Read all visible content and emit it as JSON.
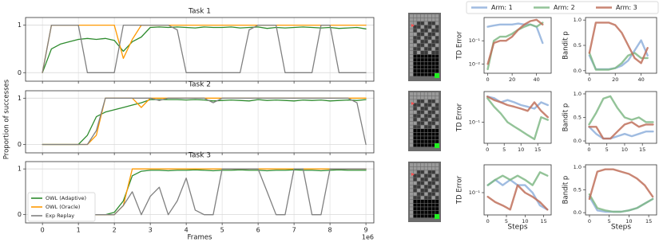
{
  "chart_data": [
    {
      "type": "line",
      "title": "Task 1",
      "grid": true,
      "xticklabels": false,
      "x": [
        0,
        0.25,
        0.5,
        0.75,
        1,
        1.25,
        1.5,
        1.75,
        2,
        2.25,
        2.5,
        2.75,
        3,
        3.25,
        3.5,
        3.75,
        4,
        4.25,
        4.5,
        4.75,
        5,
        5.25,
        5.5,
        5.75,
        6,
        6.25,
        6.5,
        6.75,
        7,
        7.25,
        7.5,
        7.75,
        8,
        8.25,
        8.5,
        8.75,
        9
      ],
      "xlim": [
        -0.47,
        9.22
      ],
      "ylim": [
        -0.18,
        1.16
      ],
      "xticks": [
        0,
        1,
        2,
        3,
        4,
        5,
        6,
        7,
        8,
        9
      ],
      "yticks": [
        0,
        1
      ],
      "series": [
        {
          "color": "#2e8b2e",
          "values": [
            0,
            0.5,
            0.6,
            0.65,
            0.7,
            0.72,
            0.7,
            0.72,
            0.68,
            0.45,
            0.65,
            0.75,
            0.95,
            0.96,
            0.95,
            0.96,
            0.95,
            0.94,
            0.96,
            0.95,
            0.95,
            0.96,
            0.94,
            0.95,
            0.96,
            0.93,
            0.95,
            0.94,
            0.95,
            0.96,
            0.95,
            0.94,
            0.95,
            0.93,
            0.94,
            0.95,
            0.92
          ]
        },
        {
          "color": "#ff9900",
          "values": [
            0,
            1,
            1,
            1,
            1,
            1,
            1,
            1,
            1,
            0.3,
            0.7,
            1,
            1,
            1,
            1,
            1,
            1,
            1,
            1,
            1,
            1,
            1,
            1,
            1,
            1,
            1,
            1,
            1,
            1,
            1,
            1,
            1,
            1,
            1,
            1,
            1,
            1
          ]
        },
        {
          "color": "#808080",
          "values": [
            0,
            1,
            1,
            1,
            1,
            0,
            0,
            0,
            0,
            1,
            1,
            1,
            1,
            1,
            1,
            0.9,
            0,
            0,
            0,
            0,
            0,
            0,
            0,
            0.9,
            1,
            1,
            1,
            0,
            0,
            0,
            0,
            1,
            1,
            0,
            0,
            0,
            0
          ]
        }
      ]
    },
    {
      "type": "line",
      "title": "Task 2",
      "ylabel": "Proportion of successes",
      "grid": true,
      "xticklabels": false,
      "x": [
        0,
        0.25,
        0.5,
        0.75,
        1,
        1.25,
        1.5,
        1.75,
        2,
        2.25,
        2.5,
        2.75,
        3,
        3.25,
        3.5,
        3.75,
        4,
        4.25,
        4.5,
        4.75,
        5,
        5.25,
        5.5,
        5.75,
        6,
        6.25,
        6.5,
        6.75,
        7,
        7.25,
        7.5,
        7.75,
        8,
        8.25,
        8.5,
        8.75,
        9
      ],
      "xlim": [
        -0.47,
        9.22
      ],
      "ylim": [
        -0.18,
        1.16
      ],
      "xticks": [
        0,
        1,
        2,
        3,
        4,
        5,
        6,
        7,
        8,
        9
      ],
      "yticks": [
        0,
        1
      ],
      "series": [
        {
          "color": "#2e8b2e",
          "values": [
            0,
            0,
            0,
            0,
            0,
            0.2,
            0.6,
            0.7,
            0.75,
            0.8,
            0.85,
            0.9,
            0.97,
            0.97,
            0.97,
            0.97,
            0.96,
            0.97,
            0.96,
            0.94,
            0.95,
            0.96,
            0.95,
            0.94,
            0.97,
            0.95,
            0.96,
            0.95,
            0.94,
            0.96,
            0.95,
            0.96,
            0.94,
            0.95,
            0.96,
            0.95,
            0.97
          ]
        },
        {
          "color": "#ff9900",
          "values": [
            0,
            0,
            0,
            0,
            0,
            0,
            0.2,
            1,
            1,
            1,
            1,
            0.8,
            1,
            1,
            1,
            1,
            1,
            1,
            1,
            1,
            1,
            1,
            1,
            1,
            1,
            1,
            1,
            1,
            1,
            1,
            1,
            1,
            1,
            1,
            1,
            1,
            1
          ]
        },
        {
          "color": "#808080",
          "values": [
            0,
            0,
            0,
            0,
            0,
            0,
            0.3,
            1,
            1,
            1,
            1,
            1,
            1,
            0.95,
            1,
            1,
            1,
            1,
            1,
            0.9,
            1,
            1,
            1,
            1,
            1,
            1,
            1,
            1,
            1,
            1,
            1,
            1,
            1,
            1,
            1,
            0.9,
            0
          ]
        }
      ]
    },
    {
      "type": "line",
      "title": "Task 3",
      "xlabel": "Frames",
      "x_offset_text": "1e6",
      "grid": true,
      "legend": "lower left",
      "x": [
        0,
        0.25,
        0.5,
        0.75,
        1,
        1.25,
        1.5,
        1.75,
        2,
        2.25,
        2.5,
        2.75,
        3,
        3.25,
        3.5,
        3.75,
        4,
        4.25,
        4.5,
        4.75,
        5,
        5.25,
        5.5,
        5.75,
        6,
        6.25,
        6.5,
        6.75,
        7,
        7.25,
        7.5,
        7.75,
        8,
        8.25,
        8.5,
        8.75,
        9
      ],
      "xlim": [
        -0.47,
        9.22
      ],
      "ylim": [
        -0.18,
        1.16
      ],
      "xticks": [
        0,
        1,
        2,
        3,
        4,
        5,
        6,
        7,
        8,
        9
      ],
      "yticks": [
        0,
        1
      ],
      "series": [
        {
          "name": "OWL (Adaptive)",
          "color": "#2e8b2e",
          "values": [
            0,
            0,
            0,
            0,
            0,
            0,
            0,
            0,
            0.05,
            0.3,
            0.85,
            0.95,
            0.97,
            0.97,
            0.96,
            0.97,
            0.97,
            0.98,
            0.97,
            0.96,
            0.97,
            0.97,
            0.98,
            0.97,
            0.97,
            0.96,
            0.97,
            0.97,
            0.98,
            0.97,
            0.97,
            0.96,
            0.97,
            0.98,
            0.97,
            0.97,
            0.97
          ]
        },
        {
          "name": "OWL (Oracle)",
          "color": "#ff9900",
          "values": [
            0,
            0,
            0,
            0,
            0,
            0,
            0,
            0,
            0,
            0.2,
            1,
            1,
            1,
            1,
            1,
            1,
            1,
            1,
            1,
            1,
            1,
            1,
            1,
            1,
            1,
            1,
            1,
            1,
            1,
            1,
            1,
            1,
            1,
            1,
            1,
            1,
            1
          ]
        },
        {
          "name": "Exp Replay",
          "color": "#808080",
          "values": [
            0,
            0,
            0,
            0,
            0,
            0,
            0,
            0,
            0,
            0.2,
            0.5,
            0,
            0.4,
            0.6,
            0,
            0.3,
            0.8,
            0.1,
            0,
            0,
            1,
            1,
            1,
            1,
            1,
            0.5,
            0,
            0,
            1,
            1,
            0,
            0,
            1,
            1,
            1,
            1,
            1
          ]
        }
      ]
    },
    {
      "type": "line",
      "yscale": "log",
      "ylabel": "TD Error",
      "legend": "upper center",
      "x": [
        0,
        5,
        10,
        15,
        20,
        25,
        30,
        35,
        40,
        45
      ],
      "xlim": [
        -3,
        52
      ],
      "xticks": [
        0,
        20,
        40
      ],
      "ylim": [
        0.004,
        1
      ],
      "yticks": [
        {
          "value": 0.01,
          "label": "10⁻²"
        },
        {
          "value": 0.1,
          "label": "10⁻¹"
        }
      ],
      "series": [
        {
          "name": "Arm: 1",
          "color": "#8fb0dc",
          "values": [
            0.4,
            0.45,
            0.5,
            0.5,
            0.5,
            0.55,
            0.5,
            0.5,
            0.4,
            0.08
          ]
        },
        {
          "name": "Arm: 2",
          "color": "#80b986",
          "values": [
            0.006,
            0.1,
            0.15,
            0.15,
            0.2,
            0.3,
            0.4,
            0.5,
            0.4,
            0.6
          ]
        },
        {
          "name": "Arm: 3",
          "color": "#c0705a",
          "values": [
            0.01,
            0.08,
            0.1,
            0.1,
            0.15,
            0.3,
            0.5,
            0.7,
            0.8,
            0.5
          ]
        }
      ]
    },
    {
      "type": "line",
      "ylabel": "Bandit p",
      "x": [
        0,
        5,
        10,
        15,
        20,
        25,
        30,
        35,
        40,
        45
      ],
      "xlim": [
        -3,
        52
      ],
      "xticks": [
        0,
        20,
        40
      ],
      "ylim": [
        -0.05,
        1.05
      ],
      "yticks": [
        {
          "value": 0,
          "label": "0.0"
        },
        {
          "value": 0.5,
          "label": "0.5"
        },
        {
          "value": 1,
          "label": "1.0"
        }
      ],
      "series": [
        {
          "color": "#8fb0dc",
          "values": [
            0.3,
            0.03,
            0.03,
            0.03,
            0.05,
            0.1,
            0.2,
            0.4,
            0.6,
            0.3
          ]
        },
        {
          "color": "#80b986",
          "values": [
            0.35,
            0.02,
            0.02,
            0.02,
            0.05,
            0.15,
            0.3,
            0.35,
            0.25,
            0.25
          ]
        },
        {
          "color": "#c0705a",
          "values": [
            0.35,
            0.95,
            0.95,
            0.95,
            0.9,
            0.75,
            0.5,
            0.25,
            0.15,
            0.45
          ]
        }
      ]
    },
    {
      "type": "line",
      "yscale": "log",
      "ylabel": "TD Error",
      "x": [
        0,
        2,
        4,
        6,
        8,
        10,
        12,
        14,
        16,
        18
      ],
      "xlim": [
        -1,
        19
      ],
      "xticks": [
        0,
        5,
        10,
        15
      ],
      "ylim": [
        0.018,
        1.2
      ],
      "yticks": [
        {
          "value": 0.1,
          "label": "10⁻¹"
        }
      ],
      "series": [
        {
          "color": "#8fb0dc",
          "values": [
            0.8,
            0.7,
            0.5,
            0.6,
            0.5,
            0.4,
            0.35,
            0.3,
            0.5,
            0.4
          ]
        },
        {
          "color": "#80b986",
          "values": [
            0.7,
            0.35,
            0.2,
            0.1,
            0.07,
            0.05,
            0.035,
            0.025,
            0.15,
            0.12
          ]
        },
        {
          "color": "#c0705a",
          "values": [
            0.8,
            0.6,
            0.5,
            0.4,
            0.35,
            0.3,
            0.25,
            0.5,
            0.25,
            0.15
          ]
        }
      ]
    },
    {
      "type": "line",
      "ylabel": "Bandit p",
      "x": [
        0,
        2,
        4,
        6,
        8,
        10,
        12,
        14,
        16,
        18
      ],
      "xlim": [
        -1,
        19
      ],
      "xticks": [
        0,
        5,
        10,
        15
      ],
      "ylim": [
        -0.05,
        1.05
      ],
      "yticks": [
        {
          "value": 0,
          "label": "0.0"
        },
        {
          "value": 0.5,
          "label": "0.5"
        },
        {
          "value": 1,
          "label": "1.0"
        }
      ],
      "series": [
        {
          "color": "#8fb0dc",
          "values": [
            0.3,
            0.15,
            0.05,
            0.05,
            0.1,
            0.15,
            0.1,
            0.15,
            0.2,
            0.2
          ]
        },
        {
          "color": "#80b986",
          "values": [
            0.35,
            0.6,
            0.9,
            0.95,
            0.7,
            0.5,
            0.45,
            0.5,
            0.4,
            0.4
          ]
        },
        {
          "color": "#c0705a",
          "values": [
            0.3,
            0.3,
            0.05,
            0.05,
            0.2,
            0.35,
            0.4,
            0.3,
            0.35,
            0.35
          ]
        }
      ]
    },
    {
      "type": "line",
      "yscale": "log",
      "ylabel": "TD Error",
      "xlabel": "Steps",
      "x": [
        0,
        2,
        4,
        6,
        8,
        10,
        12,
        14,
        16
      ],
      "xlim": [
        -1,
        17
      ],
      "xticks": [
        0,
        5,
        10,
        15
      ],
      "ylim": [
        0.03,
        0.45
      ],
      "yticks": [
        {
          "value": 0.1,
          "label": "10⁻¹"
        }
      ],
      "series": [
        {
          "color": "#8fb0dc",
          "values": [
            0.15,
            0.2,
            0.15,
            0.2,
            0.15,
            0.15,
            0.1,
            0.05,
            0.04
          ]
        },
        {
          "color": "#80b986",
          "values": [
            0.15,
            0.2,
            0.25,
            0.2,
            0.25,
            0.2,
            0.15,
            0.3,
            0.25
          ]
        },
        {
          "color": "#c0705a",
          "values": [
            0.08,
            0.06,
            0.05,
            0.04,
            0.15,
            0.1,
            0.08,
            0.06,
            0.04
          ]
        }
      ]
    },
    {
      "type": "line",
      "ylabel": "Bandit p",
      "xlabel": "Steps",
      "x": [
        0,
        2,
        4,
        6,
        8,
        10,
        12,
        14,
        16
      ],
      "xlim": [
        -1,
        17
      ],
      "xticks": [
        0,
        5,
        10,
        15
      ],
      "ylim": [
        -0.05,
        1.05
      ],
      "yticks": [
        {
          "value": 0,
          "label": "0.0"
        },
        {
          "value": 0.5,
          "label": "0.5"
        },
        {
          "value": 1,
          "label": "1.0"
        }
      ],
      "series": [
        {
          "color": "#8fb0dc",
          "values": [
            0.35,
            0.05,
            0.02,
            0.02,
            0.02,
            0.05,
            0.1,
            0.2,
            0.3
          ]
        },
        {
          "color": "#80b986",
          "values": [
            0.4,
            0.1,
            0.05,
            0.02,
            0.02,
            0.05,
            0.1,
            0.2,
            0.3
          ]
        },
        {
          "color": "#c0705a",
          "values": [
            0.3,
            0.9,
            0.95,
            0.95,
            0.9,
            0.85,
            0.75,
            0.6,
            0.35
          ]
        }
      ]
    }
  ]
}
